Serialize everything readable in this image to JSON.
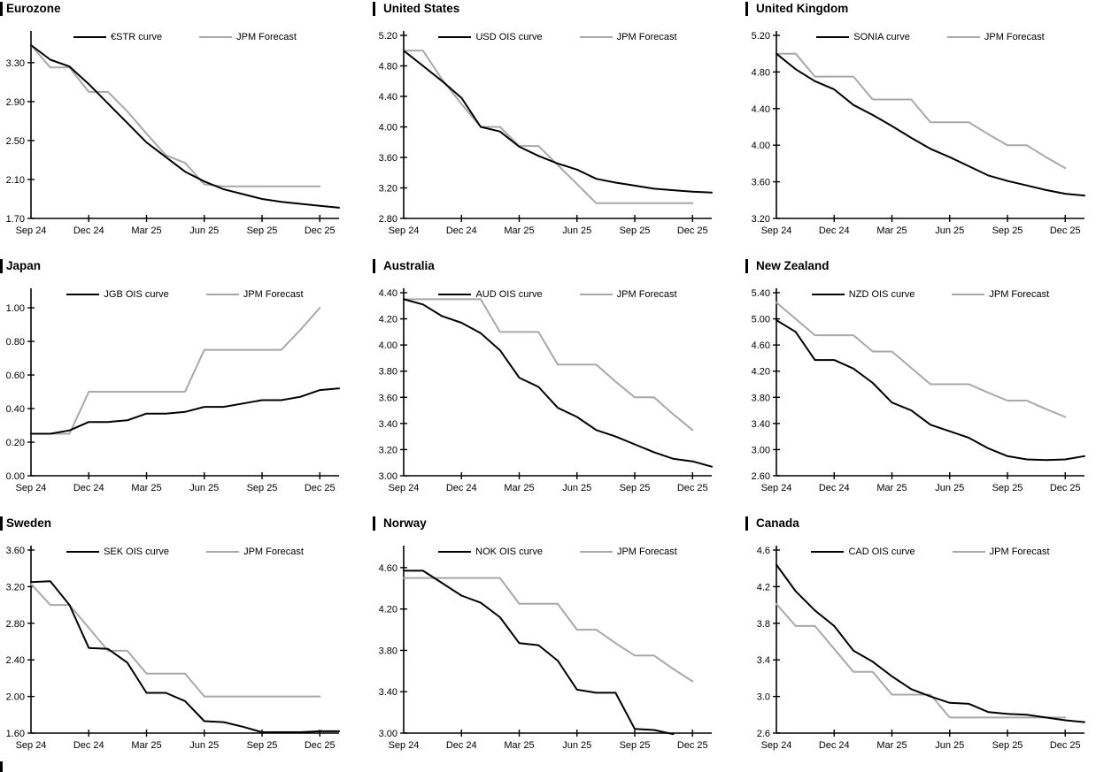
{
  "page": {
    "background": "#ffffff",
    "x_axis_labels": [
      "Sep 24",
      "Dec 24",
      "Mar 25",
      "Jun 25",
      "Sep 25",
      "Dec 25"
    ],
    "forecast_series_name": "JPM Forecast"
  },
  "colors": {
    "curve": "#000000",
    "forecast": "#a8a8a8"
  },
  "chart_data": [
    {
      "type": "line",
      "title": "Eurozone",
      "left_bar": true,
      "x_ticks": [
        "Sep 24",
        "Dec 24",
        "Mar 25",
        "Jun 25",
        "Sep 25",
        "Dec 25"
      ],
      "ymin": 1.7,
      "ymax": 3.58,
      "y_ticks": [
        "3.30",
        "2.90",
        "2.50",
        "2.10",
        "1.70"
      ],
      "series": [
        {
          "name": "€STR curve",
          "color": "#000000",
          "values": [
            3.48,
            3.33,
            3.26,
            3.08,
            2.88,
            2.68,
            2.48,
            2.33,
            2.18,
            2.08,
            2.0,
            1.95,
            1.9,
            1.87,
            1.85,
            1.83,
            1.81
          ]
        },
        {
          "name": "JPM Forecast",
          "color": "#a8a8a8",
          "values": [
            3.48,
            3.25,
            3.25,
            3.0,
            3.0,
            2.8,
            2.57,
            2.35,
            2.27,
            2.05,
            2.03,
            2.03,
            2.03,
            2.03,
            2.03,
            2.03
          ]
        }
      ]
    },
    {
      "type": "line",
      "title": "United States",
      "left_bar": false,
      "x_ticks": [
        "Sep 24",
        "Dec 24",
        "Mar 25",
        "Jun 25",
        "Sep 25",
        "Dec 25"
      ],
      "ymin": 2.8,
      "ymax": 5.2,
      "y_ticks": [
        "5.20",
        "4.80",
        "4.40",
        "4.00",
        "3.60",
        "3.20",
        "2.80"
      ],
      "series": [
        {
          "name": "USD OIS curve",
          "color": "#000000",
          "values": [
            5.0,
            4.8,
            4.6,
            4.38,
            4.0,
            3.94,
            3.74,
            3.62,
            3.52,
            3.44,
            3.32,
            3.27,
            3.23,
            3.19,
            3.17,
            3.15,
            3.14
          ]
        },
        {
          "name": "JPM Forecast",
          "color": "#a8a8a8",
          "values": [
            5.0,
            5.0,
            4.62,
            4.3,
            4.0,
            4.0,
            3.75,
            3.75,
            3.5,
            3.25,
            3.0,
            3.0,
            3.0,
            3.0,
            3.0,
            3.0
          ]
        }
      ]
    },
    {
      "type": "line",
      "title": "United Kingdom",
      "left_bar": false,
      "x_ticks": [
        "Sep 24",
        "Dec 24",
        "Mar 25",
        "Jun 25",
        "Sep 25",
        "Dec 25"
      ],
      "ymin": 3.2,
      "ymax": 5.2,
      "y_ticks": [
        "5.20",
        "4.80",
        "4.40",
        "4.00",
        "3.60",
        "3.20"
      ],
      "series": [
        {
          "name": "SONIA curve",
          "color": "#000000",
          "values": [
            5.0,
            4.83,
            4.7,
            4.61,
            4.44,
            4.33,
            4.21,
            4.08,
            3.96,
            3.87,
            3.77,
            3.67,
            3.61,
            3.56,
            3.51,
            3.47,
            3.45
          ]
        },
        {
          "name": "JPM Forecast",
          "color": "#a8a8a8",
          "values": [
            5.0,
            5.0,
            4.75,
            4.75,
            4.75,
            4.5,
            4.5,
            4.5,
            4.25,
            4.25,
            4.25,
            4.12,
            4.0,
            4.0,
            3.87,
            3.75
          ]
        }
      ]
    },
    {
      "type": "line",
      "title": "Japan",
      "left_bar": true,
      "x_ticks": [
        "Sep 24",
        "Dec 24",
        "Mar 25",
        "Jun 25",
        "Sep 25",
        "Dec 25"
      ],
      "ymin": 0.0,
      "ymax": 1.09,
      "y_ticks": [
        "1.00",
        "0.80",
        "0.60",
        "0.40",
        "0.20",
        "0.00"
      ],
      "series": [
        {
          "name": "JGB OIS curve",
          "color": "#000000",
          "values": [
            0.25,
            0.25,
            0.27,
            0.32,
            0.32,
            0.33,
            0.37,
            0.37,
            0.38,
            0.41,
            0.41,
            0.43,
            0.45,
            0.45,
            0.47,
            0.51,
            0.52
          ]
        },
        {
          "name": "JPM Forecast",
          "color": "#a8a8a8",
          "values": [
            0.25,
            0.25,
            0.25,
            0.5,
            0.5,
            0.5,
            0.5,
            0.5,
            0.5,
            0.75,
            0.75,
            0.75,
            0.75,
            0.75,
            0.87,
            1.0
          ]
        }
      ]
    },
    {
      "type": "line",
      "title": "Australia",
      "left_bar": false,
      "x_ticks": [
        "Sep 24",
        "Dec 24",
        "Mar 25",
        "Jun 25",
        "Sep 25",
        "Dec 25"
      ],
      "ymin": 3.0,
      "ymax": 4.4,
      "y_ticks": [
        "4.40",
        "4.20",
        "4.00",
        "3.80",
        "3.60",
        "3.40",
        "3.20",
        "3.00"
      ],
      "series": [
        {
          "name": "AUD OIS curve",
          "color": "#000000",
          "values": [
            4.35,
            4.31,
            4.22,
            4.17,
            4.09,
            3.96,
            3.75,
            3.68,
            3.52,
            3.45,
            3.35,
            3.3,
            3.24,
            3.18,
            3.13,
            3.11,
            3.07
          ]
        },
        {
          "name": "JPM Forecast",
          "color": "#a8a8a8",
          "values": [
            4.35,
            4.35,
            4.35,
            4.35,
            4.35,
            4.1,
            4.1,
            4.1,
            3.85,
            3.85,
            3.85,
            3.72,
            3.6,
            3.6,
            3.47,
            3.35
          ]
        }
      ]
    },
    {
      "type": "line",
      "title": "New Zealand",
      "left_bar": false,
      "x_ticks": [
        "Sep 24",
        "Dec 24",
        "Mar 25",
        "Jun 25",
        "Sep 25",
        "Dec 25"
      ],
      "ymin": 2.6,
      "ymax": 5.4,
      "y_ticks": [
        "5.40",
        "5.00",
        "4.60",
        "4.20",
        "3.80",
        "3.40",
        "3.00",
        "2.60"
      ],
      "series": [
        {
          "name": "NZD OIS curve",
          "color": "#000000",
          "values": [
            4.98,
            4.8,
            4.37,
            4.37,
            4.24,
            4.02,
            3.72,
            3.6,
            3.38,
            3.28,
            3.18,
            3.02,
            2.9,
            2.85,
            2.84,
            2.85,
            2.9
          ]
        },
        {
          "name": "JPM Forecast",
          "color": "#a8a8a8",
          "values": [
            5.25,
            5.0,
            4.75,
            4.75,
            4.75,
            4.5,
            4.5,
            4.25,
            4.0,
            4.0,
            4.0,
            3.87,
            3.75,
            3.75,
            3.62,
            3.5
          ]
        }
      ]
    },
    {
      "type": "line",
      "title": "Sweden",
      "left_bar": true,
      "x_ticks": [
        "Sep 24",
        "Dec 24",
        "Mar 25",
        "Jun 25",
        "Sep 25",
        "Dec 25"
      ],
      "ymin": 1.6,
      "ymax": 3.6,
      "y_ticks": [
        "3.60",
        "3.20",
        "2.80",
        "2.40",
        "2.00",
        "1.60"
      ],
      "series": [
        {
          "name": "SEK OIS curve",
          "color": "#000000",
          "values": [
            3.25,
            3.26,
            3.0,
            2.53,
            2.52,
            2.37,
            2.04,
            2.04,
            1.95,
            1.73,
            1.72,
            1.67,
            1.61,
            1.61,
            1.61,
            1.62,
            1.62
          ]
        },
        {
          "name": "JPM Forecast",
          "color": "#a8a8a8",
          "values": [
            3.23,
            3.0,
            3.0,
            2.75,
            2.5,
            2.5,
            2.25,
            2.25,
            2.25,
            2.0,
            2.0,
            2.0,
            2.0,
            2.0,
            2.0,
            2.0
          ]
        }
      ]
    },
    {
      "type": "line",
      "title": "Norway",
      "left_bar": false,
      "x_ticks": [
        "Sep 24",
        "Dec 24",
        "Mar 25",
        "Jun 25",
        "Sep 25",
        "Dec 25"
      ],
      "ymin": 3.0,
      "ymax": 4.77,
      "y_ticks": [
        "4.60",
        "4.20",
        "3.80",
        "3.40",
        "3.00"
      ],
      "series": [
        {
          "name": "NOK OIS curve",
          "color": "#000000",
          "values": [
            4.57,
            4.57,
            4.45,
            4.33,
            4.26,
            4.12,
            3.87,
            3.85,
            3.7,
            3.42,
            3.39,
            3.39,
            3.04,
            3.03,
            2.99
          ]
        },
        {
          "name": "JPM Forecast",
          "color": "#a8a8a8",
          "values": [
            4.5,
            4.5,
            4.5,
            4.5,
            4.5,
            4.5,
            4.25,
            4.25,
            4.25,
            4.0,
            4.0,
            3.87,
            3.75,
            3.75,
            3.62,
            3.5
          ]
        }
      ]
    },
    {
      "type": "line",
      "title": "Canada",
      "left_bar": false,
      "x_ticks": [
        "Sep 24",
        "Dec 24",
        "Mar 25",
        "Jun 25",
        "Sep 25",
        "Dec 25"
      ],
      "ymin": 2.6,
      "ymax": 4.6,
      "y_ticks": [
        "4.6",
        "4.2",
        "3.8",
        "3.4",
        "3.0",
        "2.6"
      ],
      "series": [
        {
          "name": "CAD OIS curve",
          "color": "#000000",
          "values": [
            4.44,
            4.15,
            3.94,
            3.77,
            3.5,
            3.38,
            3.22,
            3.08,
            3.0,
            2.93,
            2.92,
            2.83,
            2.81,
            2.8,
            2.77,
            2.74,
            2.72
          ]
        },
        {
          "name": "JPM Forecast",
          "color": "#a8a8a8",
          "values": [
            4.01,
            3.77,
            3.77,
            3.52,
            3.27,
            3.27,
            3.02,
            3.02,
            3.02,
            2.77,
            2.77,
            2.77,
            2.77,
            2.77,
            2.77,
            2.77
          ]
        }
      ]
    }
  ]
}
